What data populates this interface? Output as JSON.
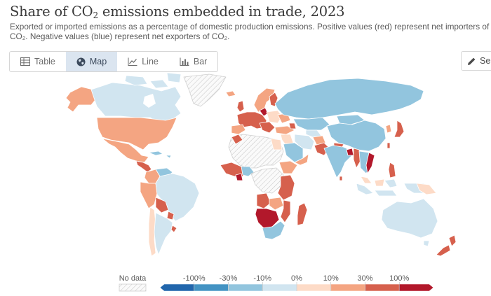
{
  "title": {
    "prefix": "Share of CO",
    "sub": "2",
    "suffix": " emissions embedded in trade, 2023"
  },
  "subtitle": "Exported or imported emissions as a percentage of domestic production emissions. Positive values (red) represent net importers of CO₂. Negative values (blue) represent net exporters of CO₂.",
  "tabs": [
    {
      "label": "Table",
      "icon": "table-icon",
      "active": false
    },
    {
      "label": "Map",
      "icon": "globe-icon",
      "active": true
    },
    {
      "label": "Line",
      "icon": "line-chart-icon",
      "active": false
    },
    {
      "label": "Bar",
      "icon": "bar-chart-icon",
      "active": false
    }
  ],
  "select_button": {
    "label": "Sele",
    "icon": "pencil-icon"
  },
  "legend": {
    "no_data_label": "No data",
    "labels": [
      "-100%",
      "-30%",
      "-10%",
      "0%",
      "10%",
      "30%",
      "100%"
    ],
    "colors": [
      "#2166ac",
      "#4393c3",
      "#92c5de",
      "#d1e5f0",
      "#fddbc7",
      "#f4a582",
      "#d6604d",
      "#b2182b"
    ],
    "no_data_color": "#f2f2f2"
  }
}
